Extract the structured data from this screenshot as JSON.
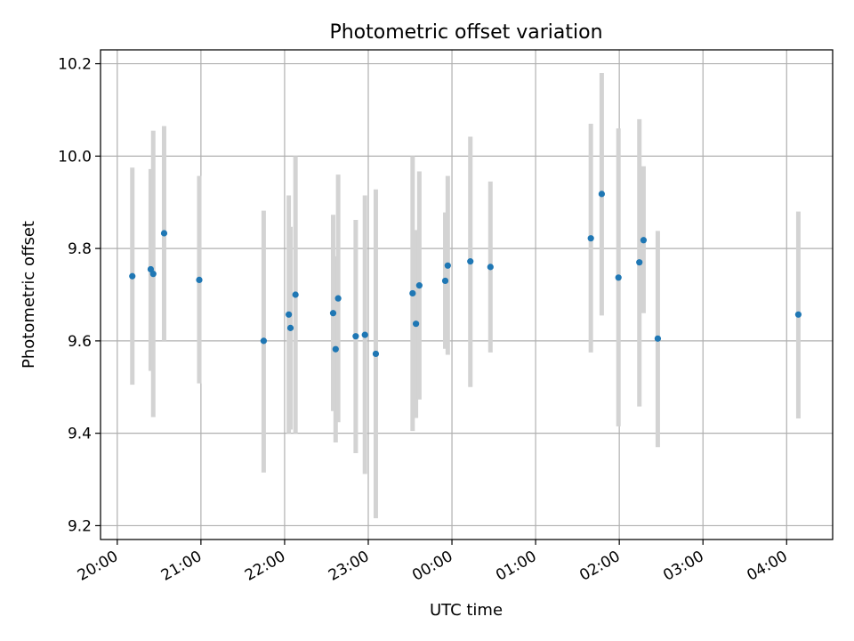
{
  "chart_data": {
    "type": "scatter",
    "title": "Photometric offset variation",
    "xlabel": "UTC time",
    "ylabel": "Photometric offset",
    "x_axis": "time (hours since 20:00 UTC shown as clock times)",
    "xlim": [
      -0.2,
      8.55
    ],
    "ylim": [
      9.17,
      10.23
    ],
    "x_ticks": [
      {
        "value": 0,
        "label": "20:00"
      },
      {
        "value": 1,
        "label": "21:00"
      },
      {
        "value": 2,
        "label": "22:00"
      },
      {
        "value": 3,
        "label": "23:00"
      },
      {
        "value": 4,
        "label": "00:00"
      },
      {
        "value": 5,
        "label": "01:00"
      },
      {
        "value": 6,
        "label": "02:00"
      },
      {
        "value": 7,
        "label": "03:00"
      },
      {
        "value": 8,
        "label": "04:00"
      }
    ],
    "y_ticks": [
      {
        "value": 9.2,
        "label": "9.2"
      },
      {
        "value": 9.4,
        "label": "9.4"
      },
      {
        "value": 9.6,
        "label": "9.6"
      },
      {
        "value": 9.8,
        "label": "9.8"
      },
      {
        "value": 10.0,
        "label": "10.0"
      },
      {
        "value": 10.2,
        "label": "10.2"
      }
    ],
    "grid": true,
    "legend": "none",
    "marker_color": "#1f77b4",
    "errorbar_color": "#d3d3d3",
    "points": [
      {
        "x": 0.18,
        "y": 9.74,
        "err_low": 9.505,
        "err_high": 9.975
      },
      {
        "x": 0.4,
        "y": 9.755,
        "err_low": 9.535,
        "err_high": 9.972
      },
      {
        "x": 0.43,
        "y": 9.745,
        "err_low": 9.435,
        "err_high": 10.055
      },
      {
        "x": 0.56,
        "y": 9.833,
        "err_low": 9.6,
        "err_high": 10.065
      },
      {
        "x": 0.98,
        "y": 9.732,
        "err_low": 9.508,
        "err_high": 9.957
      },
      {
        "x": 1.75,
        "y": 9.6,
        "err_low": 9.315,
        "err_high": 9.882
      },
      {
        "x": 2.05,
        "y": 9.657,
        "err_low": 9.4,
        "err_high": 9.915
      },
      {
        "x": 2.07,
        "y": 9.628,
        "err_low": 9.408,
        "err_high": 9.847
      },
      {
        "x": 2.13,
        "y": 9.7,
        "err_low": 9.4,
        "err_high": 10.0
      },
      {
        "x": 2.58,
        "y": 9.66,
        "err_low": 9.448,
        "err_high": 9.873
      },
      {
        "x": 2.61,
        "y": 9.582,
        "err_low": 9.38,
        "err_high": 9.783
      },
      {
        "x": 2.64,
        "y": 9.692,
        "err_low": 9.424,
        "err_high": 9.96
      },
      {
        "x": 2.85,
        "y": 9.61,
        "err_low": 9.357,
        "err_high": 9.862
      },
      {
        "x": 2.96,
        "y": 9.613,
        "err_low": 9.312,
        "err_high": 9.915
      },
      {
        "x": 3.09,
        "y": 9.572,
        "err_low": 9.216,
        "err_high": 9.928
      },
      {
        "x": 3.53,
        "y": 9.703,
        "err_low": 9.405,
        "err_high": 10.0
      },
      {
        "x": 3.57,
        "y": 9.637,
        "err_low": 9.433,
        "err_high": 9.84
      },
      {
        "x": 3.61,
        "y": 9.72,
        "err_low": 9.473,
        "err_high": 9.967
      },
      {
        "x": 3.92,
        "y": 9.73,
        "err_low": 9.583,
        "err_high": 9.878
      },
      {
        "x": 3.95,
        "y": 9.763,
        "err_low": 9.57,
        "err_high": 9.957
      },
      {
        "x": 4.22,
        "y": 9.772,
        "err_low": 9.5,
        "err_high": 10.042
      },
      {
        "x": 4.46,
        "y": 9.76,
        "err_low": 9.575,
        "err_high": 9.945
      },
      {
        "x": 5.66,
        "y": 9.822,
        "err_low": 9.575,
        "err_high": 10.07
      },
      {
        "x": 5.79,
        "y": 9.918,
        "err_low": 9.655,
        "err_high": 10.18
      },
      {
        "x": 5.99,
        "y": 9.737,
        "err_low": 9.415,
        "err_high": 10.06
      },
      {
        "x": 6.24,
        "y": 9.77,
        "err_low": 9.458,
        "err_high": 10.08
      },
      {
        "x": 6.29,
        "y": 9.818,
        "err_low": 9.66,
        "err_high": 9.978
      },
      {
        "x": 6.46,
        "y": 9.605,
        "err_low": 9.37,
        "err_high": 9.838
      },
      {
        "x": 8.14,
        "y": 9.657,
        "err_low": 9.432,
        "err_high": 9.88
      }
    ]
  }
}
